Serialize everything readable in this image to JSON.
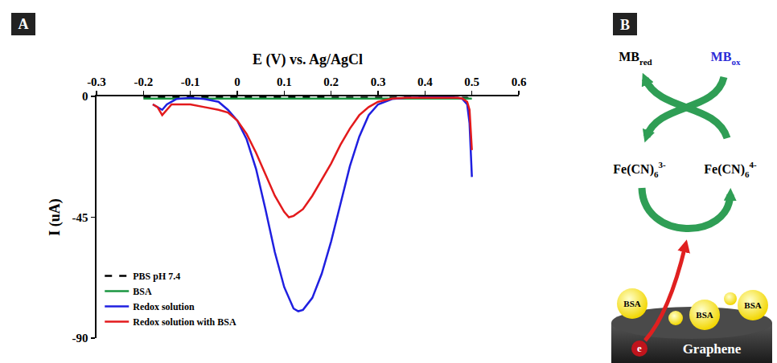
{
  "panel_labels": {
    "chart": "A",
    "diagram": "B"
  },
  "chart_data": {
    "type": "line",
    "x_label": "E (V) vs. Ag/AgCl",
    "y_label": "I (uA)",
    "xlim": [
      -0.3,
      0.6
    ],
    "xticks": [
      -0.3,
      -0.2,
      -0.1,
      0,
      0.1,
      0.2,
      0.3,
      0.4,
      0.5,
      0.6
    ],
    "ylim": [
      -90,
      0
    ],
    "yticks": [
      0,
      -45,
      -90
    ],
    "grid": false,
    "legend": "lower left",
    "series": [
      {
        "name": "PBS pH 7.4",
        "color": "#000000",
        "line_style": "dashed",
        "x": [
          -0.2,
          0,
          0.2,
          0.4,
          0.49,
          0.5
        ],
        "values": [
          -0.3,
          -0.3,
          -0.3,
          -0.3,
          -0.5,
          -2
        ]
      },
      {
        "name": "BSA",
        "color": "#1a9641",
        "line_style": "solid",
        "x": [
          -0.2,
          0,
          0.2,
          0.4,
          0.5
        ],
        "values": [
          -0.8,
          -0.8,
          -0.8,
          -0.8,
          -0.8
        ]
      },
      {
        "name": "Redox solution",
        "color": "#1f1fe0",
        "line_style": "solid",
        "x": [
          -0.18,
          -0.17,
          -0.16,
          -0.15,
          -0.13,
          -0.1,
          -0.07,
          -0.04,
          -0.02,
          0,
          0.02,
          0.04,
          0.06,
          0.08,
          0.1,
          0.12,
          0.13,
          0.14,
          0.16,
          0.18,
          0.2,
          0.22,
          0.24,
          0.26,
          0.28,
          0.3,
          0.33,
          0.36,
          0.4,
          0.44,
          0.47,
          0.48,
          0.49,
          0.495,
          0.5
        ],
        "values": [
          -3,
          -4,
          -5,
          -3,
          -1,
          -0.5,
          -1,
          -2,
          -5,
          -9,
          -16,
          -27,
          -42,
          -58,
          -71,
          -79,
          -80,
          -79.5,
          -75,
          -66,
          -54,
          -40,
          -26,
          -15,
          -7,
          -3,
          -1,
          -0.5,
          -0.3,
          -0.3,
          -0.5,
          -1,
          -3,
          -10,
          -30
        ]
      },
      {
        "name": "Redox solution with BSA",
        "color": "#e31a1c",
        "line_style": "solid",
        "x": [
          -0.18,
          -0.17,
          -0.16,
          -0.15,
          -0.14,
          -0.12,
          -0.1,
          -0.07,
          -0.04,
          -0.02,
          0,
          0.02,
          0.04,
          0.06,
          0.08,
          0.1,
          0.11,
          0.12,
          0.14,
          0.16,
          0.18,
          0.2,
          0.22,
          0.24,
          0.26,
          0.28,
          0.3,
          0.33,
          0.36,
          0.4,
          0.44,
          0.47,
          0.48,
          0.49,
          0.495,
          0.5
        ],
        "values": [
          -3,
          -4,
          -7,
          -5,
          -3,
          -3,
          -3,
          -4,
          -5,
          -6,
          -9,
          -14,
          -21,
          -29,
          -37,
          -43,
          -45,
          -44.5,
          -42,
          -37,
          -31,
          -25,
          -18,
          -12,
          -7,
          -4,
          -2,
          -0.8,
          -0.5,
          -0.5,
          -0.5,
          -0.5,
          -0.8,
          -2,
          -5,
          -20
        ]
      }
    ]
  },
  "diagram": {
    "mediator": {
      "reduced": {
        "base": "MB",
        "sub": "red"
      },
      "oxidized": {
        "base": "MB",
        "sub": "ox"
      }
    },
    "redox_couple": {
      "oxidized": {
        "base": "Fe(CN)",
        "sub": "6",
        "sup": "3-"
      },
      "reduced": {
        "base": "Fe(CN)",
        "sub": "6",
        "sup": "4-"
      }
    },
    "proteins": [
      "BSA",
      "BSA",
      "BSA"
    ],
    "electrode": "Graphene",
    "electron": "e"
  }
}
